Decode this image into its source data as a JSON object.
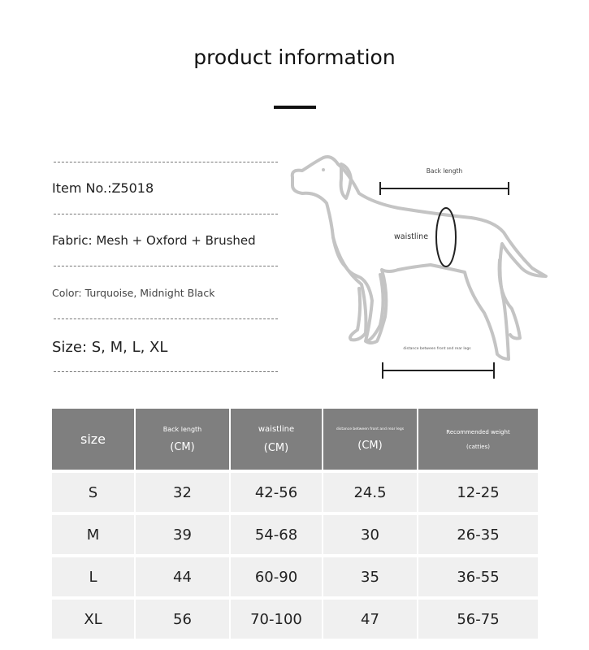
{
  "title": "product information",
  "info": {
    "item": "Item No.:Z5018",
    "fabric": "Fabric: Mesh + Oxford + Brushed",
    "color": "Color: Turquoise, Midnight Black",
    "size": "Size: S, M, L, XL"
  },
  "diagram": {
    "back_length": "Back length",
    "waistline": "waistline",
    "leg_distance": "distance between front and rear legs"
  },
  "table": {
    "headers": [
      {
        "label": "size",
        "unit": ""
      },
      {
        "label": "Back length",
        "unit": "(CM)"
      },
      {
        "label": "waistline",
        "unit": "(CM)"
      },
      {
        "label": "distance between front and rear legs",
        "unit": "(CM)"
      },
      {
        "label": "Recommended weight",
        "unit": "(catties)"
      }
    ],
    "rows": [
      [
        "S",
        "32",
        "42-56",
        "24.5",
        "12-25"
      ],
      [
        "M",
        "39",
        "54-68",
        "30",
        "26-35"
      ],
      [
        "L",
        "44",
        "60-90",
        "35",
        "36-55"
      ],
      [
        "XL",
        "56",
        "70-100",
        "47",
        "56-75"
      ]
    ]
  }
}
